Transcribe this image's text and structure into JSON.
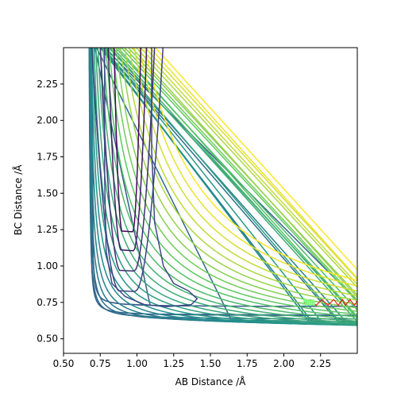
{
  "chart_data": {
    "type": "contour",
    "title": "",
    "xlabel": "AB Distance /Å",
    "ylabel": "BC Distance /Å",
    "xlim": [
      0.5,
      2.5
    ],
    "ylim": [
      0.4,
      2.5
    ],
    "xticks": [
      0.5,
      0.75,
      1.0,
      1.25,
      1.5,
      1.75,
      2.0,
      2.25
    ],
    "xtick_labels": [
      "0.50",
      "0.75",
      "1.00",
      "1.25",
      "1.50",
      "1.75",
      "2.00",
      "2.25"
    ],
    "yticks": [
      0.5,
      0.75,
      1.0,
      1.25,
      1.5,
      1.75,
      2.0,
      2.25
    ],
    "ytick_labels": [
      "0.50",
      "0.75",
      "1.00",
      "1.25",
      "1.50",
      "1.75",
      "2.00",
      "2.25"
    ],
    "grid": false,
    "legend": "none",
    "colormap": "viridis",
    "colormap_stops": [
      "#440154",
      "#3b528b",
      "#21918c",
      "#5ec962",
      "#fde725"
    ],
    "contours": {
      "level_count": 24,
      "valley_edge": 0.69,
      "valley_edge_outermost": 0.62,
      "floor_inner": 0.72,
      "floor_outermost": 0.42,
      "well_minimum": [
        0.935,
        1.235
      ],
      "notch_tip": [
        1.41,
        0.775
      ]
    },
    "trajectory": {
      "color": "#ff0000",
      "points": [
        [
          2.13,
          0.74
        ],
        [
          2.18,
          0.77
        ],
        [
          2.22,
          0.73
        ],
        [
          2.26,
          0.77
        ],
        [
          2.3,
          0.73
        ],
        [
          2.34,
          0.77
        ],
        [
          2.37,
          0.73
        ],
        [
          2.4,
          0.77
        ],
        [
          2.42,
          0.73
        ],
        [
          2.45,
          0.77
        ],
        [
          2.48,
          0.73
        ],
        [
          2.5,
          0.76
        ]
      ],
      "marker_point": [
        2.13,
        0.75
      ],
      "marker_color": "#7fff7f"
    }
  }
}
